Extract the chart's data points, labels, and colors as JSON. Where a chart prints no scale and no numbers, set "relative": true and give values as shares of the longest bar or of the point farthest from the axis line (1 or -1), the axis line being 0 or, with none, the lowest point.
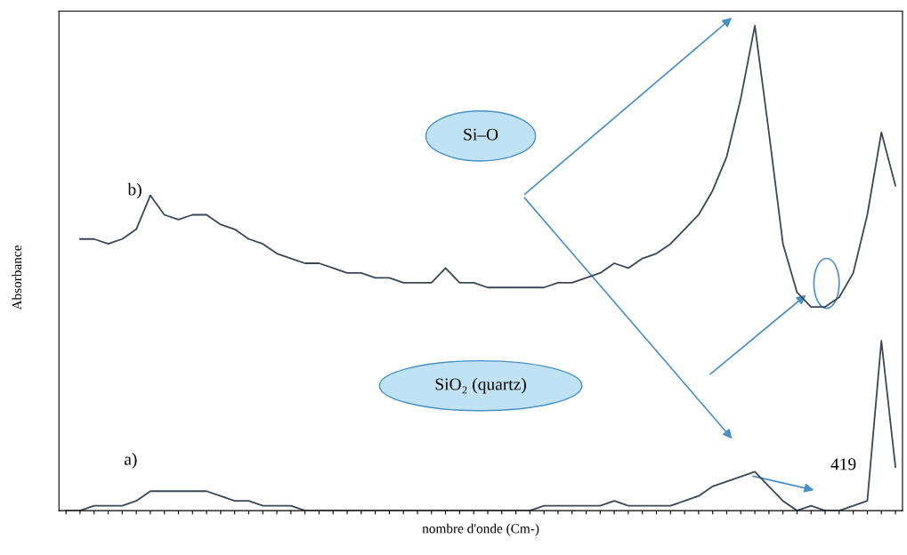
{
  "chart_data": {
    "type": "line",
    "relative": true,
    "xlabel": "nombre d'onde (Cm-)",
    "ylabel": "Absorbance",
    "categories": [
      null,
      null,
      null,
      null,
      null,
      null,
      null,
      null,
      null,
      null,
      null,
      null,
      null,
      null,
      null,
      null,
      null,
      null,
      null,
      null,
      null,
      null,
      null,
      null,
      null,
      null,
      null,
      null,
      null,
      null,
      null,
      null,
      null,
      null,
      null,
      null,
      null,
      null,
      null,
      null,
      null,
      null,
      null,
      null,
      null,
      null,
      null,
      null,
      null,
      null,
      null,
      null,
      null,
      null,
      null,
      null,
      null,
      null,
      null,
      null
    ],
    "series": [
      {
        "color": "#3b4656",
        "values": [
          null,
          0.56,
          0.56,
          0.55,
          0.56,
          0.58,
          0.65,
          0.61,
          0.6,
          0.61,
          0.61,
          0.59,
          0.58,
          0.56,
          0.55,
          0.53,
          0.52,
          0.51,
          0.51,
          0.5,
          0.49,
          0.49,
          0.48,
          0.48,
          0.47,
          0.47,
          0.47,
          0.5,
          0.47,
          0.47,
          0.46,
          0.46,
          0.46,
          0.46,
          0.46,
          0.47,
          0.47,
          0.48,
          0.49,
          0.51,
          0.5,
          0.52,
          0.53,
          0.55,
          0.58,
          0.61,
          0.66,
          0.73,
          0.85,
          1.0,
          0.78,
          0.55,
          0.45,
          0.42,
          0.42,
          0.44,
          0.49,
          0.61,
          0.78,
          0.67
        ]
      },
      {
        "color": "#3b4656",
        "values": [
          0.0,
          0.0,
          0.01,
          0.01,
          0.01,
          0.02,
          0.04,
          0.04,
          0.04,
          0.04,
          0.04,
          0.03,
          0.02,
          0.02,
          0.01,
          0.01,
          0.01,
          0.0,
          0.0,
          0.0,
          0.0,
          0.0,
          0.0,
          0.0,
          0.0,
          0.0,
          0.0,
          0.0,
          0.0,
          0.0,
          0.0,
          0.0,
          0.0,
          0.0,
          0.01,
          0.01,
          0.01,
          0.01,
          0.01,
          0.02,
          0.01,
          0.01,
          0.01,
          0.01,
          0.02,
          0.03,
          0.05,
          0.06,
          0.07,
          0.08,
          0.05,
          0.02,
          0.0,
          0.01,
          0.0,
          0.0,
          0.01,
          0.02,
          0.35,
          0.09
        ]
      }
    ],
    "annotations": [
      "b)",
      "a)",
      "Si–O",
      "SiO₂ (quartz)",
      "419"
    ],
    "grid": false,
    "legend": false,
    "marker": "none",
    "line_style": "solid"
  }
}
